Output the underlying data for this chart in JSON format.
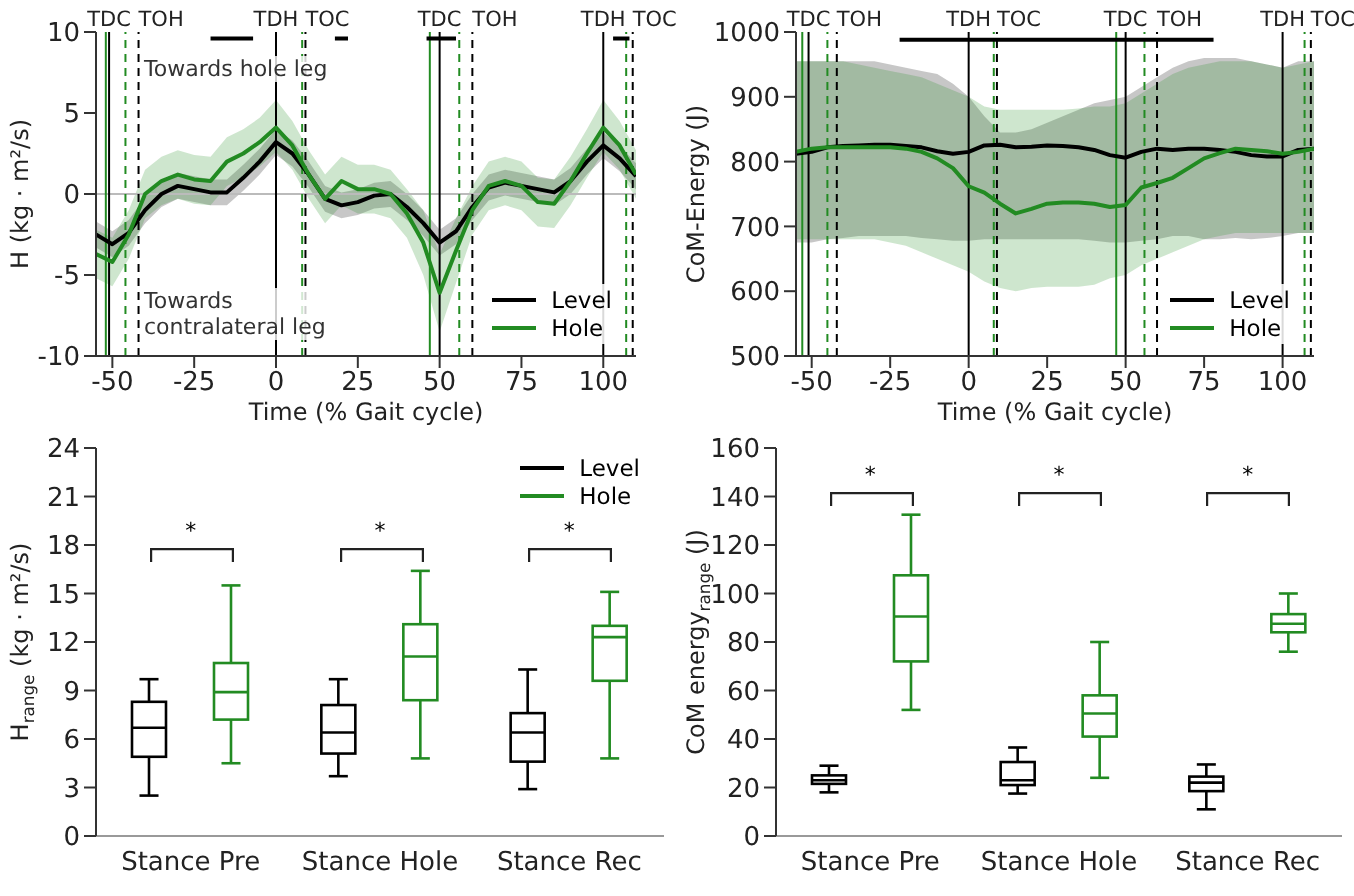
{
  "chart_data": [
    {
      "type": "line",
      "xlabel": "Time (% Gait cycle)",
      "ylabel": "H (kg · m²/s)",
      "xlim": [
        -55,
        110
      ],
      "xticks": [
        -50,
        -25,
        0,
        25,
        50,
        75,
        100
      ],
      "ylim": [
        -10,
        10
      ],
      "yticks": [
        -10,
        -5,
        0,
        5,
        10
      ],
      "legend": "lower right",
      "x": [
        -55,
        -50,
        -45,
        -40,
        -35,
        -30,
        -25,
        -20,
        -15,
        -10,
        -5,
        0,
        5,
        10,
        15,
        20,
        25,
        30,
        35,
        40,
        45,
        50,
        55,
        60,
        65,
        70,
        75,
        80,
        85,
        90,
        95,
        100,
        105,
        110
      ],
      "series": [
        {
          "name": "Level",
          "color": "#000000",
          "values": [
            -2.5,
            -3.1,
            -2.4,
            -1.0,
            0.0,
            0.5,
            0.3,
            0.1,
            0.1,
            1.0,
            2.0,
            3.2,
            2.5,
            1.2,
            -0.3,
            -0.7,
            -0.5,
            -0.1,
            0.0,
            -0.8,
            -1.8,
            -3.0,
            -2.3,
            -0.8,
            0.4,
            0.7,
            0.5,
            0.3,
            0.1,
            0.8,
            2.0,
            3.0,
            2.2,
            1.1
          ],
          "lower": [
            -3.3,
            -3.9,
            -3.2,
            -1.8,
            -0.8,
            -0.3,
            -0.5,
            -0.7,
            -0.7,
            0.2,
            1.2,
            2.4,
            1.7,
            0.4,
            -1.1,
            -1.5,
            -1.3,
            -0.9,
            -0.8,
            -1.6,
            -2.6,
            -3.8,
            -3.1,
            -1.6,
            -0.4,
            -0.1,
            -0.3,
            -0.5,
            -0.7,
            0.0,
            1.2,
            2.2,
            1.4,
            0.3
          ],
          "upper": [
            -1.7,
            -2.3,
            -1.6,
            -0.2,
            0.8,
            1.3,
            1.1,
            0.9,
            0.9,
            1.8,
            2.8,
            4.0,
            3.3,
            2.0,
            0.5,
            0.1,
            0.3,
            0.7,
            0.8,
            0.0,
            -1.0,
            -2.2,
            -1.5,
            0.0,
            1.2,
            1.5,
            1.3,
            1.1,
            0.9,
            1.6,
            2.8,
            3.8,
            3.0,
            1.9
          ]
        },
        {
          "type": "line",
          "color": "#000000",
          "x": [
            -20,
            -7,
            -6,
            18,
            22,
            23,
            46,
            55,
            56,
            103,
            108
          ],
          "values": [
            9.6,
            9.6,
            null,
            9.6,
            9.6,
            null,
            9.6,
            9.6,
            null,
            9.6,
            9.6
          ]
        },
        {
          "name": "Hole",
          "color": "#228b22",
          "values": [
            -3.7,
            -4.2,
            -2.5,
            0.0,
            0.8,
            1.2,
            0.9,
            0.8,
            2.0,
            2.5,
            3.2,
            4.1,
            3.0,
            1.2,
            -0.3,
            0.8,
            0.3,
            0.3,
            0.0,
            -1.2,
            -3.0,
            -6.1,
            -3.5,
            -1.0,
            0.5,
            0.8,
            0.5,
            -0.5,
            -0.6,
            0.8,
            2.5,
            4.1,
            3.0,
            1.2
          ],
          "lower": [
            -5.2,
            -5.7,
            -4.0,
            -1.5,
            -0.7,
            -0.3,
            -0.6,
            -0.7,
            0.5,
            1.0,
            1.7,
            2.6,
            1.5,
            -0.3,
            -1.8,
            -0.7,
            -1.2,
            -1.2,
            -1.5,
            -2.7,
            -5.0,
            -8.5,
            -5.5,
            -2.5,
            -1.0,
            -0.7,
            -1.0,
            -2.0,
            -2.1,
            -0.7,
            1.0,
            2.6,
            1.5,
            -0.3
          ],
          "upper": [
            -2.2,
            -2.7,
            -1.0,
            1.5,
            2.3,
            2.7,
            2.4,
            2.3,
            3.5,
            4.0,
            4.7,
            5.8,
            4.5,
            2.7,
            1.2,
            2.3,
            1.8,
            1.8,
            1.5,
            0.3,
            -1.0,
            -3.7,
            -1.5,
            0.5,
            2.0,
            2.3,
            2.0,
            1.0,
            0.9,
            2.3,
            4.0,
            5.8,
            4.5,
            2.7
          ]
        }
      ],
      "ref_lines": [
        {
          "axis": "y",
          "value": 0,
          "color": "#bbbbbb"
        },
        {
          "axis": "x",
          "value": -52,
          "color": "#228b22"
        },
        {
          "axis": "x",
          "value": -51,
          "label": "TDC",
          "color": "#000000"
        },
        {
          "axis": "x",
          "value": -46,
          "color": "#228b22",
          "line_style": "dashed"
        },
        {
          "axis": "x",
          "value": -42,
          "label": "TOH",
          "color": "#000000",
          "line_style": "dashed"
        },
        {
          "axis": "x",
          "value": 0,
          "label": "TDH",
          "color": "#000000"
        },
        {
          "axis": "x",
          "value": 8,
          "color": "#228b22",
          "line_style": "dashed"
        },
        {
          "axis": "x",
          "value": 9,
          "label": "TOC",
          "color": "#000000",
          "line_style": "dashed"
        },
        {
          "axis": "x",
          "value": 47,
          "color": "#228b22"
        },
        {
          "axis": "x",
          "value": 50,
          "label": "TDC",
          "color": "#000000"
        },
        {
          "axis": "x",
          "value": 56,
          "color": "#228b22",
          "line_style": "dashed"
        },
        {
          "axis": "x",
          "value": 60,
          "label": "TOH",
          "color": "#000000",
          "line_style": "dashed"
        },
        {
          "axis": "x",
          "value": 100,
          "label": "TDH",
          "color": "#000000"
        },
        {
          "axis": "x",
          "value": 107,
          "color": "#228b22",
          "line_style": "dashed"
        },
        {
          "axis": "x",
          "value": 109,
          "label": "TOC",
          "color": "#000000",
          "line_style": "dashed"
        }
      ],
      "annotations": [
        "Towards hole leg",
        "Towards contralateral leg"
      ]
    },
    {
      "type": "line",
      "xlabel": "Time (% Gait cycle)",
      "ylabel": "CoM-Energy (J)",
      "xlim": [
        -55,
        110
      ],
      "xticks": [
        -50,
        -25,
        0,
        25,
        50,
        75,
        100
      ],
      "ylim": [
        500,
        1000
      ],
      "yticks": [
        500,
        600,
        700,
        800,
        900,
        1000
      ],
      "legend": "lower right",
      "x": [
        -55,
        -50,
        -45,
        -40,
        -35,
        -30,
        -25,
        -20,
        -15,
        -10,
        -5,
        0,
        5,
        10,
        15,
        20,
        25,
        30,
        35,
        40,
        45,
        50,
        55,
        60,
        65,
        70,
        75,
        80,
        85,
        90,
        95,
        100,
        105,
        110
      ],
      "series": [
        {
          "name": "Level",
          "color": "#000000",
          "values": [
            812,
            815,
            822,
            824,
            825,
            826,
            826,
            824,
            822,
            816,
            812,
            815,
            825,
            826,
            822,
            823,
            825,
            824,
            822,
            818,
            810,
            806,
            815,
            820,
            818,
            820,
            820,
            818,
            815,
            810,
            808,
            808,
            818,
            820
          ],
          "lower": [
            675,
            675,
            680,
            682,
            685,
            685,
            685,
            685,
            682,
            680,
            678,
            678,
            680,
            680,
            680,
            680,
            680,
            680,
            680,
            678,
            675,
            675,
            678,
            680,
            685,
            685,
            680,
            680,
            682,
            680,
            682,
            685,
            690,
            690
          ],
          "upper": [
            955,
            955,
            955,
            955,
            955,
            955,
            950,
            945,
            940,
            935,
            920,
            900,
            870,
            845,
            845,
            850,
            860,
            870,
            880,
            890,
            895,
            900,
            915,
            930,
            945,
            955,
            960,
            960,
            960,
            955,
            950,
            945,
            955,
            955
          ]
        },
        {
          "type": "line",
          "color": "#000000",
          "x": [
            -22,
            78
          ],
          "values": [
            988,
            988
          ]
        },
        {
          "name": "Hole",
          "color": "#228b22",
          "values": [
            815,
            820,
            822,
            822,
            822,
            822,
            822,
            820,
            815,
            805,
            790,
            762,
            752,
            735,
            720,
            727,
            735,
            737,
            737,
            735,
            730,
            733,
            760,
            767,
            775,
            790,
            805,
            813,
            820,
            818,
            816,
            812,
            815,
            820
          ],
          "lower": [
            680,
            680,
            680,
            680,
            680,
            680,
            675,
            670,
            660,
            650,
            640,
            630,
            615,
            605,
            600,
            605,
            607,
            607,
            607,
            610,
            620,
            625,
            640,
            650,
            660,
            670,
            680,
            685,
            690,
            690,
            690,
            690,
            690,
            690
          ],
          "upper": [
            955,
            955,
            955,
            955,
            950,
            945,
            940,
            935,
            930,
            920,
            910,
            900,
            885,
            880,
            880,
            880,
            880,
            880,
            882,
            885,
            885,
            890,
            905,
            920,
            935,
            945,
            950,
            955,
            955,
            955,
            950,
            945,
            950,
            955
          ]
        }
      ],
      "ref_lines": [
        {
          "axis": "x",
          "value": -53,
          "color": "#228b22"
        },
        {
          "axis": "x",
          "value": -51,
          "label": "TDC",
          "color": "#000000"
        },
        {
          "axis": "x",
          "value": -45,
          "color": "#228b22",
          "line_style": "dashed"
        },
        {
          "axis": "x",
          "value": -42,
          "label": "TOH",
          "color": "#000000",
          "line_style": "dashed"
        },
        {
          "axis": "x",
          "value": 0,
          "label": "TDH",
          "color": "#000000"
        },
        {
          "axis": "x",
          "value": 8,
          "color": "#228b22",
          "line_style": "dashed"
        },
        {
          "axis": "x",
          "value": 9,
          "label": "TOC",
          "color": "#000000",
          "line_style": "dashed"
        },
        {
          "axis": "x",
          "value": 47,
          "color": "#228b22"
        },
        {
          "axis": "x",
          "value": 50,
          "label": "TDC",
          "color": "#000000"
        },
        {
          "axis": "x",
          "value": 56,
          "color": "#228b22",
          "line_style": "dashed"
        },
        {
          "axis": "x",
          "value": 60,
          "label": "TOH",
          "color": "#000000",
          "line_style": "dashed"
        },
        {
          "axis": "x",
          "value": 100,
          "label": "TDH",
          "color": "#000000"
        },
        {
          "axis": "x",
          "value": 107,
          "color": "#228b22",
          "line_style": "dashed"
        },
        {
          "axis": "x",
          "value": 109,
          "label": "TOC",
          "color": "#000000",
          "line_style": "dashed"
        }
      ]
    },
    {
      "type": "box",
      "ylabel": "H$_{range}$ (kg · m²/s)",
      "categories": [
        "Stance Pre",
        "Stance Hole",
        "Stance Rec"
      ],
      "ylim": [
        0,
        24
      ],
      "yticks": [
        0,
        3,
        6,
        9,
        12,
        15,
        18,
        21,
        24
      ],
      "legend": "top right",
      "series": [
        {
          "name": "Level",
          "color": "#000000",
          "boxes": [
            {
              "low": 2.5,
              "q1": 4.9,
              "median": 6.7,
              "q3": 8.3,
              "high": 9.7
            },
            {
              "low": 3.7,
              "q1": 5.1,
              "median": 6.4,
              "q3": 8.1,
              "high": 9.7
            },
            {
              "low": 2.9,
              "q1": 4.6,
              "median": 6.4,
              "q3": 7.6,
              "high": 10.3
            }
          ]
        },
        {
          "name": "Hole",
          "color": "#228b22",
          "boxes": [
            {
              "low": 4.5,
              "q1": 7.2,
              "median": 8.9,
              "q3": 10.7,
              "high": 15.5
            },
            {
              "low": 4.8,
              "q1": 8.4,
              "median": 11.1,
              "q3": 13.1,
              "high": 16.4
            },
            {
              "low": 4.8,
              "q1": 9.6,
              "median": 12.3,
              "q3": 13.0,
              "high": 15.1
            }
          ]
        }
      ],
      "annotations": [
        "*",
        "*",
        "*"
      ]
    },
    {
      "type": "box",
      "ylabel": "CoM energy$_{range}$ (J)",
      "categories": [
        "Stance Pre",
        "Stance Hole",
        "Stance Rec"
      ],
      "ylim": [
        0,
        160
      ],
      "yticks": [
        0,
        20,
        40,
        60,
        80,
        100,
        120,
        140,
        160
      ],
      "series": [
        {
          "color": "#000000",
          "boxes": [
            {
              "low": 18,
              "q1": 21.5,
              "median": 23,
              "q3": 25,
              "high": 29
            },
            {
              "low": 17.5,
              "q1": 21,
              "median": 23,
              "q3": 30.5,
              "high": 36.5
            },
            {
              "low": 11,
              "q1": 18.5,
              "median": 22,
              "q3": 24.5,
              "high": 29.5
            }
          ]
        },
        {
          "color": "#228b22",
          "boxes": [
            {
              "low": 52,
              "q1": 72,
              "median": 90.5,
              "q3": 107.5,
              "high": 132.5
            },
            {
              "low": 24,
              "q1": 41,
              "median": 50.5,
              "q3": 58,
              "high": 80
            },
            {
              "low": 76,
              "q1": 84,
              "median": 87.5,
              "q3": 91.5,
              "high": 100
            }
          ]
        }
      ],
      "annotations": [
        "*",
        "*",
        "*"
      ]
    }
  ]
}
